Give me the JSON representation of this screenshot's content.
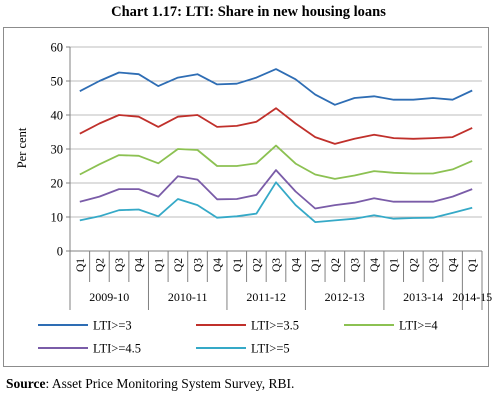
{
  "title": "Chart 1.17: LTI: Share in new housing loans",
  "source": {
    "label": "Source",
    "text": ": Asset Price Monitoring System Survey, RBI."
  },
  "chart_data": {
    "type": "line",
    "ylabel": "Per cent",
    "ylim": [
      0,
      60
    ],
    "yticks": [
      0,
      10,
      20,
      30,
      40,
      50,
      60
    ],
    "grid": true,
    "legend_position": "bottom",
    "categories": [
      "Q1",
      "Q2",
      "Q3",
      "Q4",
      "Q1",
      "Q2",
      "Q3",
      "Q4",
      "Q1",
      "Q2",
      "Q3",
      "Q4",
      "Q1",
      "Q2",
      "Q3",
      "Q4",
      "Q1",
      "Q2",
      "Q3",
      "Q4",
      "Q1"
    ],
    "groups": [
      {
        "label": "2009-10",
        "count": 4
      },
      {
        "label": "2010-11",
        "count": 4
      },
      {
        "label": "2011-12",
        "count": 4
      },
      {
        "label": "2012-13",
        "count": 4
      },
      {
        "label": "2013-14",
        "count": 4
      },
      {
        "label": "2014-15",
        "count": 1
      }
    ],
    "series": [
      {
        "name": "LTI>=3",
        "color": "#2e6db4",
        "values": [
          47,
          50,
          52.5,
          52,
          48.5,
          51,
          52,
          49,
          49.2,
          51,
          53.5,
          50.5,
          46,
          43,
          45,
          45.5,
          44.5,
          44.5,
          45,
          44.5,
          47.2
        ]
      },
      {
        "name": "LTI>=3.5",
        "color": "#c0302b",
        "values": [
          34.5,
          37.5,
          40,
          39.5,
          36.5,
          39.5,
          40,
          36.5,
          36.8,
          38,
          42,
          37.5,
          33.5,
          31.5,
          33,
          34.2,
          33.2,
          33,
          33.2,
          33.5,
          36.2
        ]
      },
      {
        "name": "LTI>=4",
        "color": "#8cc152",
        "values": [
          22.5,
          25.5,
          28.2,
          28,
          25.8,
          30,
          29.7,
          25,
          25,
          25.8,
          31,
          25.7,
          22.5,
          21.2,
          22.2,
          23.5,
          23,
          22.8,
          22.8,
          24,
          26.5
        ]
      },
      {
        "name": "LTI>=4.5",
        "color": "#7a5ca8",
        "values": [
          14.5,
          16,
          18.2,
          18.2,
          16,
          22,
          21,
          15.2,
          15.3,
          16.5,
          23.8,
          17.5,
          12.5,
          13.5,
          14.2,
          15.5,
          14.5,
          14.5,
          14.5,
          16,
          18.2
        ]
      },
      {
        "name": "LTI>=5",
        "color": "#35a9c7",
        "values": [
          9,
          10.2,
          12,
          12.2,
          10.2,
          15.3,
          13.5,
          9.8,
          10.2,
          11,
          20.2,
          13.5,
          8.5,
          9,
          9.5,
          10.5,
          9.5,
          9.7,
          9.8,
          11.2,
          12.7
        ]
      }
    ]
  }
}
